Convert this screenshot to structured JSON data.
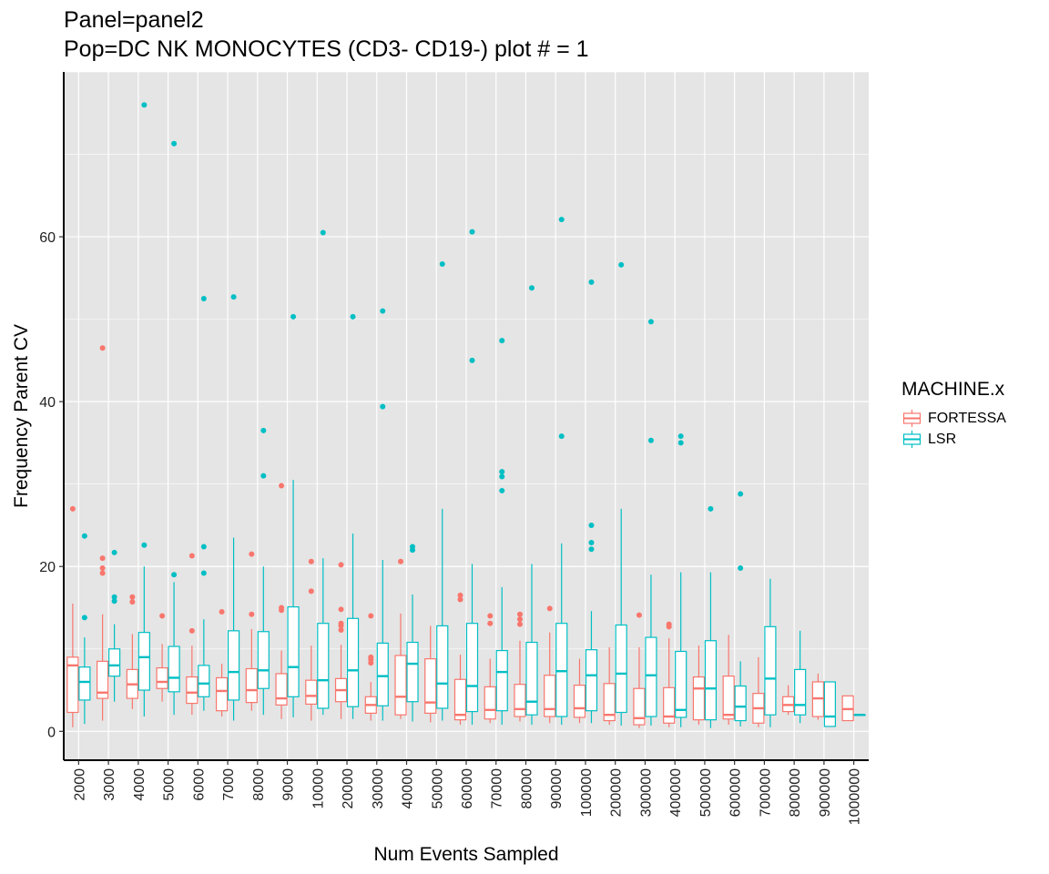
{
  "title": "Panel=panel2",
  "subtitle": "Pop=DC NK MONOCYTES (CD3- CD19-) plot # = 1",
  "colors": {
    "FORTESSA": "#F8766D",
    "LSR": "#00BFC4",
    "panel": "#E5E5E5",
    "grid": "#FFFFFF"
  },
  "chart_data": {
    "type": "boxplot",
    "xlabel": "Num Events Sampled",
    "ylabel": "Frequency Parent CV",
    "ylim": [
      -3.5,
      80
    ],
    "yticks": [
      0,
      20,
      40,
      60
    ],
    "grid": true,
    "legend_position": "right",
    "legend_title": "MACHINE.x",
    "categories": [
      "2000",
      "3000",
      "4000",
      "5000",
      "6000",
      "7000",
      "8000",
      "9000",
      "10000",
      "20000",
      "30000",
      "40000",
      "50000",
      "60000",
      "70000",
      "80000",
      "90000",
      "100000",
      "200000",
      "300000",
      "400000",
      "500000",
      "600000",
      "700000",
      "800000",
      "900000",
      "1000000"
    ],
    "series": [
      {
        "name": "FORTESSA",
        "boxes": [
          {
            "low": 0.5,
            "q1": 2.3,
            "median": 8.0,
            "q3": 9.0,
            "high": 15.5,
            "outliers": [
              27.0
            ]
          },
          {
            "low": 1.3,
            "q1": 4.0,
            "median": 4.7,
            "q3": 8.5,
            "high": 14.2,
            "outliers": [
              19.2,
              19.8,
              21.0,
              46.5
            ]
          },
          {
            "low": 2.7,
            "q1": 4.0,
            "median": 5.7,
            "q3": 7.5,
            "high": 11.8,
            "outliers": [
              15.7,
              16.3
            ]
          },
          {
            "low": 3.6,
            "q1": 5.2,
            "median": 6.0,
            "q3": 7.7,
            "high": 10.6,
            "outliers": [
              14.0
            ]
          },
          {
            "low": 2.0,
            "q1": 3.4,
            "median": 4.7,
            "q3": 6.6,
            "high": 10.4,
            "outliers": [
              12.2,
              21.3
            ]
          },
          {
            "low": 1.8,
            "q1": 2.5,
            "median": 4.9,
            "q3": 6.5,
            "high": 8.2,
            "outliers": [
              14.5
            ]
          },
          {
            "low": 2.5,
            "q1": 3.5,
            "median": 5.0,
            "q3": 7.6,
            "high": 12.4,
            "outliers": [
              14.2,
              21.5
            ]
          },
          {
            "low": 1.5,
            "q1": 3.2,
            "median": 4.0,
            "q3": 7.0,
            "high": 9.8,
            "outliers": [
              14.7,
              15.0,
              29.8
            ]
          },
          {
            "low": 1.3,
            "q1": 3.3,
            "median": 4.3,
            "q3": 6.2,
            "high": 10.4,
            "outliers": [
              17.0,
              20.6
            ]
          },
          {
            "low": 1.5,
            "q1": 3.6,
            "median": 5.0,
            "q3": 6.4,
            "high": 10.5,
            "outliers": [
              12.3,
              12.8,
              13.1,
              14.8,
              20.2
            ]
          },
          {
            "low": 1.3,
            "q1": 2.2,
            "median": 3.2,
            "q3": 4.2,
            "high": 6.0,
            "outliers": [
              8.3,
              8.7,
              9.0,
              14.0
            ]
          },
          {
            "low": 1.5,
            "q1": 2.0,
            "median": 4.2,
            "q3": 9.2,
            "high": 14.3,
            "outliers": [
              20.6
            ]
          },
          {
            "low": 1.1,
            "q1": 2.2,
            "median": 3.5,
            "q3": 8.8,
            "high": 12.8,
            "outliers": []
          },
          {
            "low": 0.8,
            "q1": 1.4,
            "median": 2.0,
            "q3": 6.3,
            "high": 9.3,
            "outliers": [
              16.0,
              16.5
            ]
          },
          {
            "low": 1.0,
            "q1": 1.5,
            "median": 2.6,
            "q3": 5.4,
            "high": 8.8,
            "outliers": [
              13.1,
              14.0
            ]
          },
          {
            "low": 1.2,
            "q1": 1.8,
            "median": 2.7,
            "q3": 5.7,
            "high": 11.0,
            "outliers": [
              13.0,
              13.6,
              14.2
            ]
          },
          {
            "low": 1.0,
            "q1": 1.8,
            "median": 2.7,
            "q3": 6.8,
            "high": 12.0,
            "outliers": [
              14.9
            ]
          },
          {
            "low": 1.0,
            "q1": 1.7,
            "median": 2.8,
            "q3": 5.6,
            "high": 8.8,
            "outliers": []
          },
          {
            "low": 0.8,
            "q1": 1.3,
            "median": 2.0,
            "q3": 5.8,
            "high": 10.2,
            "outliers": []
          },
          {
            "low": 0.4,
            "q1": 0.8,
            "median": 1.6,
            "q3": 5.2,
            "high": 10.2,
            "outliers": [
              14.1
            ]
          },
          {
            "low": 0.5,
            "q1": 1.0,
            "median": 1.8,
            "q3": 5.3,
            "high": 11.3,
            "outliers": [
              12.7,
              13.0
            ]
          },
          {
            "low": 0.8,
            "q1": 1.4,
            "median": 5.2,
            "q3": 6.6,
            "high": 10.4,
            "outliers": []
          },
          {
            "low": 0.8,
            "q1": 1.5,
            "median": 2.0,
            "q3": 6.7,
            "high": 11.7,
            "outliers": []
          },
          {
            "low": 0.5,
            "q1": 1.0,
            "median": 2.8,
            "q3": 4.6,
            "high": 9.0,
            "outliers": []
          },
          {
            "low": 2.0,
            "q1": 2.4,
            "median": 3.2,
            "q3": 4.2,
            "high": 5.6,
            "outliers": []
          },
          {
            "low": 1.4,
            "q1": 1.8,
            "median": 4.0,
            "q3": 6.0,
            "high": 7.0,
            "outliers": []
          },
          {
            "low": 1.3,
            "q1": 1.3,
            "median": 2.7,
            "q3": 4.3,
            "high": 4.3,
            "outliers": []
          }
        ]
      },
      {
        "name": "LSR",
        "boxes": [
          {
            "low": 0.9,
            "q1": 3.8,
            "median": 6.0,
            "q3": 7.8,
            "high": 11.4,
            "outliers": [
              13.8,
              23.7
            ]
          },
          {
            "low": 3.6,
            "q1": 6.7,
            "median": 8.0,
            "q3": 10.0,
            "high": 13.0,
            "outliers": [
              15.8,
              16.3,
              21.7
            ]
          },
          {
            "low": 1.8,
            "q1": 5.0,
            "median": 9.0,
            "q3": 12.0,
            "high": 20.0,
            "outliers": [
              22.6,
              76.0
            ]
          },
          {
            "low": 2.0,
            "q1": 4.8,
            "median": 6.5,
            "q3": 10.3,
            "high": 18.1,
            "outliers": [
              19.0,
              71.3
            ]
          },
          {
            "low": 2.5,
            "q1": 4.2,
            "median": 5.8,
            "q3": 8.0,
            "high": 13.6,
            "outliers": [
              19.2,
              22.4,
              52.5
            ]
          },
          {
            "low": 1.3,
            "q1": 3.8,
            "median": 7.2,
            "q3": 12.2,
            "high": 23.5,
            "outliers": [
              52.7
            ]
          },
          {
            "low": 2.0,
            "q1": 5.2,
            "median": 7.4,
            "q3": 12.1,
            "high": 20.0,
            "outliers": [
              31.0,
              36.5
            ]
          },
          {
            "low": 1.7,
            "q1": 4.2,
            "median": 7.8,
            "q3": 15.1,
            "high": 30.5,
            "outliers": [
              50.3
            ]
          },
          {
            "low": 2.0,
            "q1": 2.8,
            "median": 6.2,
            "q3": 13.1,
            "high": 21.0,
            "outliers": [
              60.5
            ]
          },
          {
            "low": 1.5,
            "q1": 3.0,
            "median": 7.4,
            "q3": 13.7,
            "high": 24.0,
            "outliers": [
              50.3
            ]
          },
          {
            "low": 1.3,
            "q1": 3.1,
            "median": 6.7,
            "q3": 10.7,
            "high": 20.8,
            "outliers": [
              39.4,
              51.0
            ]
          },
          {
            "low": 1.2,
            "q1": 3.6,
            "median": 8.2,
            "q3": 10.8,
            "high": 16.6,
            "outliers": [
              22.0,
              22.4
            ]
          },
          {
            "low": 1.3,
            "q1": 2.8,
            "median": 5.8,
            "q3": 12.8,
            "high": 27.0,
            "outliers": [
              56.7
            ]
          },
          {
            "low": 0.8,
            "q1": 2.4,
            "median": 5.5,
            "q3": 13.1,
            "high": 20.3,
            "outliers": [
              45.0,
              60.6
            ]
          },
          {
            "low": 0.8,
            "q1": 2.5,
            "median": 7.2,
            "q3": 9.8,
            "high": 17.5,
            "outliers": [
              29.2,
              30.9,
              31.5,
              47.4
            ]
          },
          {
            "low": 0.8,
            "q1": 2.0,
            "median": 3.6,
            "q3": 10.8,
            "high": 20.3,
            "outliers": [
              53.8
            ]
          },
          {
            "low": 0.8,
            "q1": 1.8,
            "median": 7.3,
            "q3": 13.1,
            "high": 22.8,
            "outliers": [
              35.8,
              62.1
            ]
          },
          {
            "low": 1.0,
            "q1": 2.5,
            "median": 6.8,
            "q3": 9.9,
            "high": 14.6,
            "outliers": [
              22.1,
              22.9,
              25.0,
              54.5
            ]
          },
          {
            "low": 0.7,
            "q1": 2.3,
            "median": 7.0,
            "q3": 12.9,
            "high": 27.0,
            "outliers": [
              56.6
            ]
          },
          {
            "low": 0.7,
            "q1": 1.8,
            "median": 6.8,
            "q3": 11.4,
            "high": 19.0,
            "outliers": [
              35.3,
              49.7
            ]
          },
          {
            "low": 0.5,
            "q1": 1.7,
            "median": 2.6,
            "q3": 9.7,
            "high": 19.3,
            "outliers": [
              35.0,
              35.8
            ]
          },
          {
            "low": 0.4,
            "q1": 1.4,
            "median": 5.2,
            "q3": 11.0,
            "high": 19.3,
            "outliers": [
              27.0
            ]
          },
          {
            "low": 0.6,
            "q1": 1.3,
            "median": 3.0,
            "q3": 5.5,
            "high": 8.5,
            "outliers": [
              19.8,
              28.8
            ]
          },
          {
            "low": 0.5,
            "q1": 2.0,
            "median": 6.4,
            "q3": 12.7,
            "high": 18.5,
            "outliers": []
          },
          {
            "low": 1.0,
            "q1": 2.0,
            "median": 3.2,
            "q3": 7.5,
            "high": 12.2,
            "outliers": []
          },
          {
            "low": 0.6,
            "q1": 0.6,
            "median": 1.8,
            "q3": 6.0,
            "high": 6.0,
            "outliers": []
          },
          {
            "low": 2.0,
            "q1": 2.0,
            "median": 2.0,
            "q3": 2.0,
            "high": 2.0,
            "outliers": []
          }
        ]
      }
    ]
  }
}
